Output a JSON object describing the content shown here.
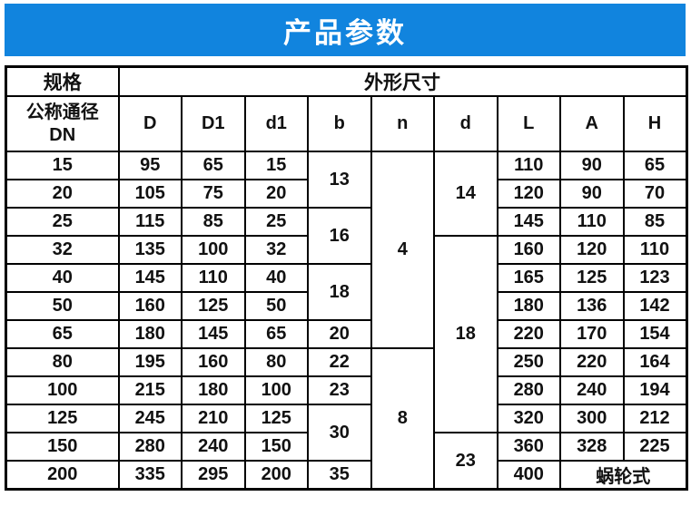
{
  "banner": {
    "title": "产品参数",
    "bg_color": "#1184de",
    "text_color": "#ffffff"
  },
  "table": {
    "header": {
      "spec_label": "规格",
      "dims_label": "外形尺寸",
      "dn_line1": "公称通径",
      "dn_line2": "DN",
      "columns": [
        "D",
        "D1",
        "d1",
        "b",
        "n",
        "d",
        "L",
        "A",
        "H"
      ]
    },
    "rows": [
      [
        {
          "v": "15"
        },
        {
          "v": "95"
        },
        {
          "v": "65"
        },
        {
          "v": "15"
        },
        {
          "v": "13",
          "rs": 2
        },
        {
          "v": "4",
          "rs": 7
        },
        {
          "v": "14",
          "rs": 3
        },
        {
          "v": "110"
        },
        {
          "v": "90"
        },
        {
          "v": "65"
        }
      ],
      [
        {
          "v": "20"
        },
        {
          "v": "105"
        },
        {
          "v": "75"
        },
        {
          "v": "20"
        },
        {
          "v": "120"
        },
        {
          "v": "90"
        },
        {
          "v": "70"
        }
      ],
      [
        {
          "v": "25"
        },
        {
          "v": "115"
        },
        {
          "v": "85"
        },
        {
          "v": "25"
        },
        {
          "v": "16",
          "rs": 2
        },
        {
          "v": "145"
        },
        {
          "v": "110"
        },
        {
          "v": "85"
        }
      ],
      [
        {
          "v": "32"
        },
        {
          "v": "135"
        },
        {
          "v": "100"
        },
        {
          "v": "32"
        },
        {
          "v": "18",
          "rs": 7
        },
        {
          "v": "160"
        },
        {
          "v": "120"
        },
        {
          "v": "110"
        }
      ],
      [
        {
          "v": "40"
        },
        {
          "v": "145"
        },
        {
          "v": "110"
        },
        {
          "v": "40"
        },
        {
          "v": "18",
          "rs": 2
        },
        {
          "v": "165"
        },
        {
          "v": "125"
        },
        {
          "v": "123"
        }
      ],
      [
        {
          "v": "50"
        },
        {
          "v": "160"
        },
        {
          "v": "125"
        },
        {
          "v": "50"
        },
        {
          "v": "180"
        },
        {
          "v": "136"
        },
        {
          "v": "142"
        }
      ],
      [
        {
          "v": "65"
        },
        {
          "v": "180"
        },
        {
          "v": "145"
        },
        {
          "v": "65"
        },
        {
          "v": "20"
        },
        {
          "v": "220"
        },
        {
          "v": "170"
        },
        {
          "v": "154"
        }
      ],
      [
        {
          "v": "80"
        },
        {
          "v": "195"
        },
        {
          "v": "160"
        },
        {
          "v": "80"
        },
        {
          "v": "22"
        },
        {
          "v": "8",
          "rs": 5
        },
        {
          "v": "250"
        },
        {
          "v": "220"
        },
        {
          "v": "164"
        }
      ],
      [
        {
          "v": "100"
        },
        {
          "v": "215"
        },
        {
          "v": "180"
        },
        {
          "v": "100"
        },
        {
          "v": "23"
        },
        {
          "v": "280"
        },
        {
          "v": "240"
        },
        {
          "v": "194"
        }
      ],
      [
        {
          "v": "125"
        },
        {
          "v": "245"
        },
        {
          "v": "210"
        },
        {
          "v": "125"
        },
        {
          "v": "30",
          "rs": 2
        },
        {
          "v": "320"
        },
        {
          "v": "300"
        },
        {
          "v": "212"
        }
      ],
      [
        {
          "v": "150"
        },
        {
          "v": "280"
        },
        {
          "v": "240"
        },
        {
          "v": "150"
        },
        {
          "v": "23",
          "rs": 2
        },
        {
          "v": "360"
        },
        {
          "v": "328"
        },
        {
          "v": "225"
        }
      ],
      [
        {
          "v": "200"
        },
        {
          "v": "335"
        },
        {
          "v": "295"
        },
        {
          "v": "200"
        },
        {
          "v": "35"
        },
        {
          "v": "400"
        },
        {
          "v": "蜗轮式",
          "cs": 2
        }
      ]
    ]
  }
}
